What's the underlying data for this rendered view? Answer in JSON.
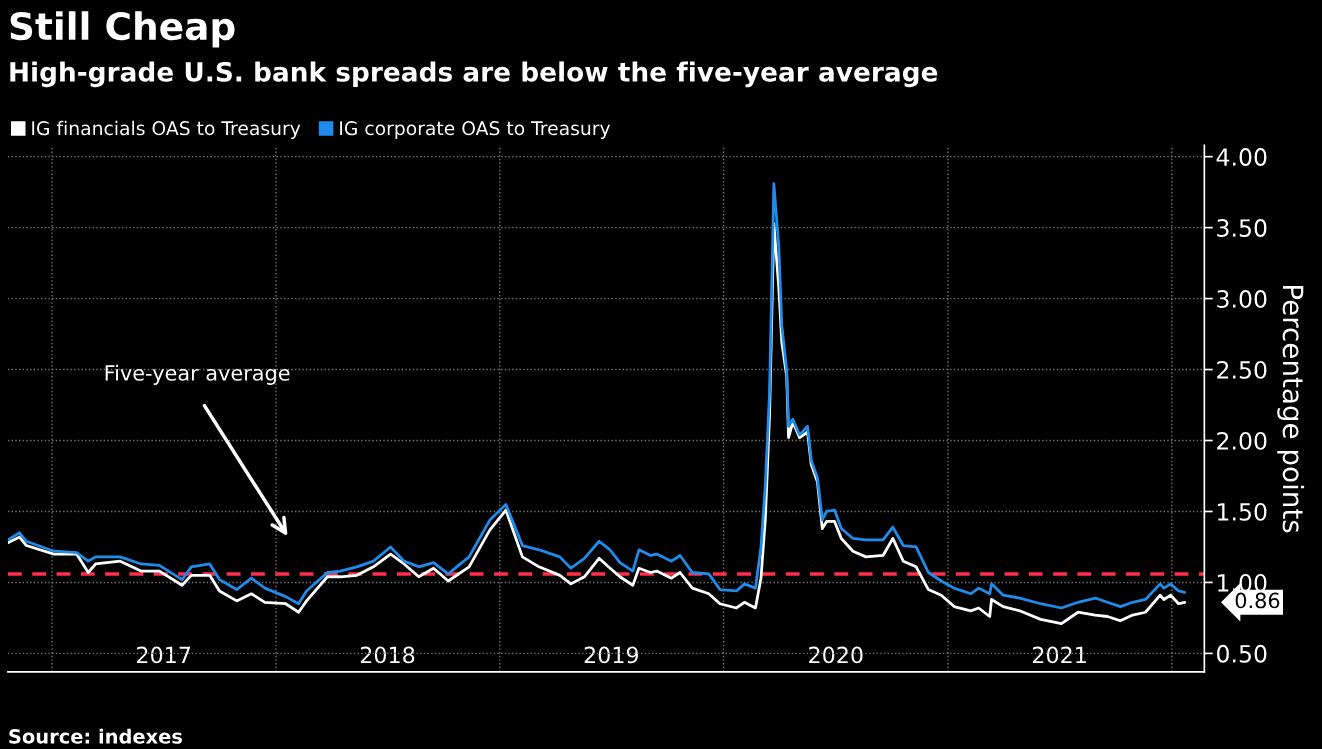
{
  "chart_data": {
    "type": "line",
    "title": "Still Cheap",
    "subtitle": "High-grade U.S. bank spreads are below the five-year average",
    "ylabel": "Percentage points",
    "x": [
      "2016-10-21",
      "2016-11-09",
      "2016-11-20",
      "2017-01-04",
      "2017-02-10",
      "2017-03-01",
      "2017-03-13",
      "2017-04-22",
      "2017-05-26",
      "2017-06-25",
      "2017-08-01",
      "2017-08-16",
      "2017-09-15",
      "2017-10-01",
      "2017-10-29",
      "2017-11-22",
      "2017-12-14",
      "2018-01-17",
      "2018-02-07",
      "2018-02-20",
      "2018-03-26",
      "2018-04-16",
      "2018-05-13",
      "2018-06-09",
      "2018-07-07",
      "2018-07-29",
      "2018-08-22",
      "2018-09-15",
      "2018-10-09",
      "2018-11-12",
      "2018-12-16",
      "2019-01-11",
      "2019-02-07",
      "2019-03-06",
      "2019-04-09",
      "2019-04-27",
      "2019-05-19",
      "2019-06-12",
      "2019-06-30",
      "2019-07-16",
      "2019-08-06",
      "2019-08-16",
      "2019-09-04",
      "2019-09-14",
      "2019-10-08",
      "2019-10-22",
      "2019-11-11",
      "2019-12-08",
      "2019-12-26",
      "2020-01-22",
      "2020-02-04",
      "2020-02-22",
      "2020-03-02",
      "2020-03-09",
      "2020-03-16",
      "2020-03-23",
      "2020-03-31",
      "2020-04-05",
      "2020-04-13",
      "2020-04-16",
      "2020-04-23",
      "2020-05-04",
      "2020-05-17",
      "2020-05-23",
      "2020-06-02",
      "2020-06-10",
      "2020-06-17",
      "2020-06-30",
      "2020-07-11",
      "2020-07-30",
      "2020-08-20",
      "2020-09-17",
      "2020-10-03",
      "2020-10-20",
      "2020-11-10",
      "2020-11-30",
      "2020-12-21",
      "2021-01-11",
      "2021-02-07",
      "2021-02-20",
      "2021-03-10",
      "2021-03-13",
      "2021-04-01",
      "2021-04-28",
      "2021-06-01",
      "2021-07-05",
      "2021-08-01",
      "2021-08-29",
      "2021-09-18",
      "2021-10-09",
      "2021-10-29",
      "2021-11-19",
      "2021-12-13",
      "2021-12-19",
      "2021-12-30",
      "2022-01-12",
      "2022-01-22"
    ],
    "series": [
      {
        "name": "IG financials OAS to Treasury",
        "color": "#ffffff",
        "values": [
          1.28,
          1.32,
          1.26,
          1.2,
          1.2,
          1.07,
          1.13,
          1.15,
          1.08,
          1.08,
          0.98,
          1.05,
          1.05,
          0.94,
          0.87,
          0.92,
          0.86,
          0.85,
          0.79,
          0.87,
          1.04,
          1.04,
          1.05,
          1.11,
          1.2,
          1.13,
          1.04,
          1.1,
          1.01,
          1.11,
          1.37,
          1.51,
          1.18,
          1.11,
          1.05,
          0.99,
          1.04,
          1.17,
          1.1,
          1.04,
          0.98,
          1.1,
          1.07,
          1.08,
          1.03,
          1.07,
          0.96,
          0.92,
          0.85,
          0.82,
          0.86,
          0.82,
          1.03,
          1.44,
          2.18,
          3.53,
          3.08,
          2.69,
          2.45,
          2.02,
          2.13,
          2.02,
          2.06,
          1.83,
          1.71,
          1.38,
          1.43,
          1.43,
          1.31,
          1.22,
          1.18,
          1.19,
          1.31,
          1.15,
          1.11,
          0.95,
          0.91,
          0.83,
          0.8,
          0.82,
          0.76,
          0.88,
          0.83,
          0.8,
          0.74,
          0.71,
          0.79,
          0.77,
          0.76,
          0.73,
          0.77,
          0.79,
          0.91,
          0.88,
          0.91,
          0.85,
          0.86
        ]
      },
      {
        "name": "IG corporate OAS to Treasury",
        "color": "#1f8ceb",
        "values": [
          1.3,
          1.35,
          1.29,
          1.22,
          1.21,
          1.15,
          1.18,
          1.18,
          1.13,
          1.12,
          1.02,
          1.11,
          1.13,
          1.02,
          0.95,
          1.03,
          0.96,
          0.9,
          0.85,
          0.94,
          1.07,
          1.08,
          1.11,
          1.15,
          1.25,
          1.15,
          1.11,
          1.14,
          1.06,
          1.18,
          1.44,
          1.55,
          1.26,
          1.23,
          1.18,
          1.1,
          1.17,
          1.29,
          1.23,
          1.14,
          1.08,
          1.23,
          1.19,
          1.2,
          1.15,
          1.19,
          1.07,
          1.06,
          0.95,
          0.94,
          0.99,
          0.96,
          1.25,
          1.68,
          2.34,
          3.81,
          3.37,
          2.81,
          2.49,
          2.1,
          2.15,
          2.04,
          2.1,
          1.86,
          1.74,
          1.44,
          1.5,
          1.51,
          1.38,
          1.31,
          1.3,
          1.3,
          1.39,
          1.26,
          1.25,
          1.07,
          1.01,
          0.96,
          0.92,
          0.96,
          0.92,
          0.99,
          0.91,
          0.89,
          0.85,
          0.82,
          0.86,
          0.89,
          0.86,
          0.83,
          0.86,
          0.88,
          0.99,
          0.96,
          0.99,
          0.94,
          0.93
        ]
      }
    ],
    "xlim": [
      "2016-10-21",
      "2022-02-23"
    ],
    "xticks": [
      {
        "value": "2017-01-01",
        "label": null
      },
      {
        "value": "2017-07-02",
        "label": "2017"
      },
      {
        "value": "2018-01-01",
        "label": null
      },
      {
        "value": "2018-07-02",
        "label": "2018"
      },
      {
        "value": "2019-01-01",
        "label": null
      },
      {
        "value": "2019-07-02",
        "label": "2019"
      },
      {
        "value": "2020-01-01",
        "label": null
      },
      {
        "value": "2020-07-02",
        "label": "2020"
      },
      {
        "value": "2021-01-01",
        "label": null
      },
      {
        "value": "2021-07-02",
        "label": "2021"
      },
      {
        "value": "2022-01-01",
        "label": null
      }
    ],
    "ylim": [
      0.37,
      4.08
    ],
    "yticks": [
      {
        "value": 0.5,
        "label": "0.50"
      },
      {
        "value": 1.0,
        "label": "1.00"
      },
      {
        "value": 1.5,
        "label": "1.50"
      },
      {
        "value": 2.0,
        "label": "2.00"
      },
      {
        "value": 2.5,
        "label": "2.50"
      },
      {
        "value": 3.0,
        "label": "3.00"
      },
      {
        "value": 3.5,
        "label": "3.50"
      },
      {
        "value": 4.0,
        "label": "4.00"
      }
    ],
    "ref_lines": [
      {
        "axis": "y",
        "value": 1.06,
        "color": "#ff2e4c",
        "line_style": "dashed"
      }
    ],
    "annotations": [
      {
        "text": "0.86",
        "x": "2022-01-22",
        "y": 0.86
      },
      "Five-year average",
      "Source: indexes"
    ],
    "grid": true,
    "legend": "top left",
    "line_style": "solid"
  }
}
